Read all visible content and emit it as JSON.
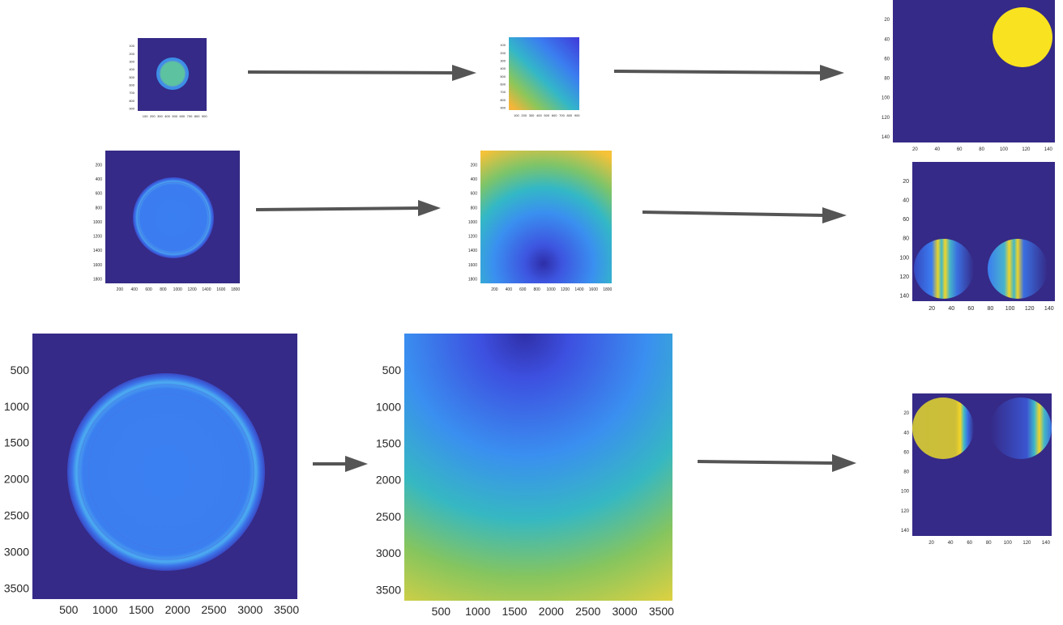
{
  "colors": {
    "background": "#352a87",
    "arrow": "#555555",
    "field_blue": "#4a7ff0",
    "field_yellow": "#f9e21f",
    "field_orange": "#f4b13b",
    "field_cyan": "#49b9c6",
    "field_green": "#5cc27f"
  },
  "panels": {
    "r1_source": {
      "xticks": [
        "100",
        "200",
        "300",
        "400",
        "500",
        "600",
        "700",
        "800",
        "900"
      ],
      "yticks": [
        "100",
        "200",
        "300",
        "400",
        "500",
        "600",
        "700",
        "800",
        "900"
      ]
    },
    "r1_phase": {
      "xticks": [
        "100",
        "200",
        "300",
        "400",
        "500",
        "600",
        "700",
        "800",
        "900"
      ],
      "yticks": [
        "100",
        "200",
        "300",
        "400",
        "500",
        "600",
        "700",
        "800",
        "900"
      ]
    },
    "r1_result": {
      "xticks": [
        "20",
        "40",
        "60",
        "80",
        "100",
        "120",
        "140"
      ],
      "yticks": [
        "20",
        "40",
        "60",
        "80",
        "100",
        "120",
        "140"
      ]
    },
    "r2_source": {
      "xticks": [
        "200",
        "400",
        "600",
        "800",
        "1000",
        "1200",
        "1400",
        "1600",
        "1800"
      ],
      "yticks": [
        "200",
        "400",
        "600",
        "800",
        "1000",
        "1200",
        "1400",
        "1600",
        "1800"
      ]
    },
    "r2_phase": {
      "xticks": [
        "200",
        "400",
        "600",
        "800",
        "1000",
        "1200",
        "1400",
        "1600",
        "1800"
      ],
      "yticks": [
        "200",
        "400",
        "600",
        "800",
        "1000",
        "1200",
        "1400",
        "1600",
        "1800"
      ]
    },
    "r2_result": {
      "xticks": [
        "20",
        "40",
        "60",
        "80",
        "100",
        "120",
        "140"
      ],
      "yticks": [
        "20",
        "40",
        "60",
        "80",
        "100",
        "120",
        "140"
      ]
    },
    "r3_source": {
      "xticks": [
        "500",
        "1000",
        "1500",
        "2000",
        "2500",
        "3000",
        "3500"
      ],
      "yticks": [
        "500",
        "1000",
        "1500",
        "2000",
        "2500",
        "3000",
        "3500"
      ]
    },
    "r3_phase": {
      "xticks": [
        "500",
        "1000",
        "1500",
        "2000",
        "2500",
        "3000",
        "3500"
      ],
      "yticks": [
        "500",
        "1000",
        "1500",
        "2000",
        "2500",
        "3000",
        "3500"
      ]
    },
    "r3_result": {
      "xticks": [
        "20",
        "40",
        "60",
        "80",
        "100",
        "120",
        "140"
      ],
      "yticks": [
        "20",
        "40",
        "60",
        "80",
        "100",
        "120",
        "140"
      ]
    }
  }
}
